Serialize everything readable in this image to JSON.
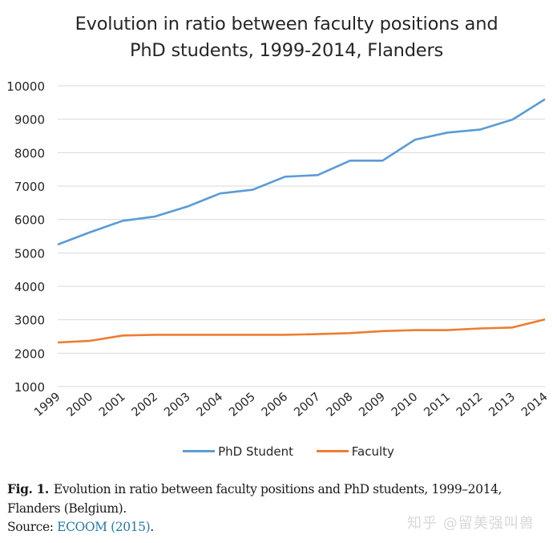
{
  "chart_data": {
    "type": "line",
    "title": "Evolution in ratio between faculty positions and PhD students, 1999-2014, Flanders",
    "title_lines": [
      "Evolution in ratio between faculty positions and",
      "PhD students, 1999-2014, Flanders"
    ],
    "xlabel": "",
    "ylabel": "",
    "x": [
      "1999",
      "2000",
      "2001",
      "2002",
      "2003",
      "2004",
      "2005",
      "2006",
      "2007",
      "2008",
      "2009",
      "2010",
      "2011",
      "2012",
      "2013",
      "2014"
    ],
    "ylim": [
      1000,
      10000
    ],
    "yticks": [
      1000,
      2000,
      3000,
      4000,
      5000,
      6000,
      7000,
      8000,
      9000,
      10000
    ],
    "grid": true,
    "legend_position": "bottom",
    "series": [
      {
        "name": "PhD Student",
        "color": "#5b9bd5",
        "values": [
          5250,
          5620,
          5960,
          6090,
          6390,
          6780,
          6890,
          7280,
          7330,
          7760,
          7760,
          8390,
          8600,
          8690,
          8990,
          9600
        ]
      },
      {
        "name": "Faculty",
        "color": "#ed7d31",
        "values": [
          2320,
          2370,
          2530,
          2550,
          2550,
          2550,
          2550,
          2550,
          2570,
          2600,
          2660,
          2690,
          2690,
          2740,
          2770,
          3010
        ]
      }
    ]
  },
  "caption": {
    "fig_label": "Fig. 1.",
    "text": "Evolution in ratio between faculty positions and PhD students, 1999–2014, Flanders (Belgium).",
    "source_prefix": "Source: ",
    "source_link": "ECOOM (2015)",
    "source_suffix": "."
  },
  "watermark": "知乎 @留美强叫兽"
}
